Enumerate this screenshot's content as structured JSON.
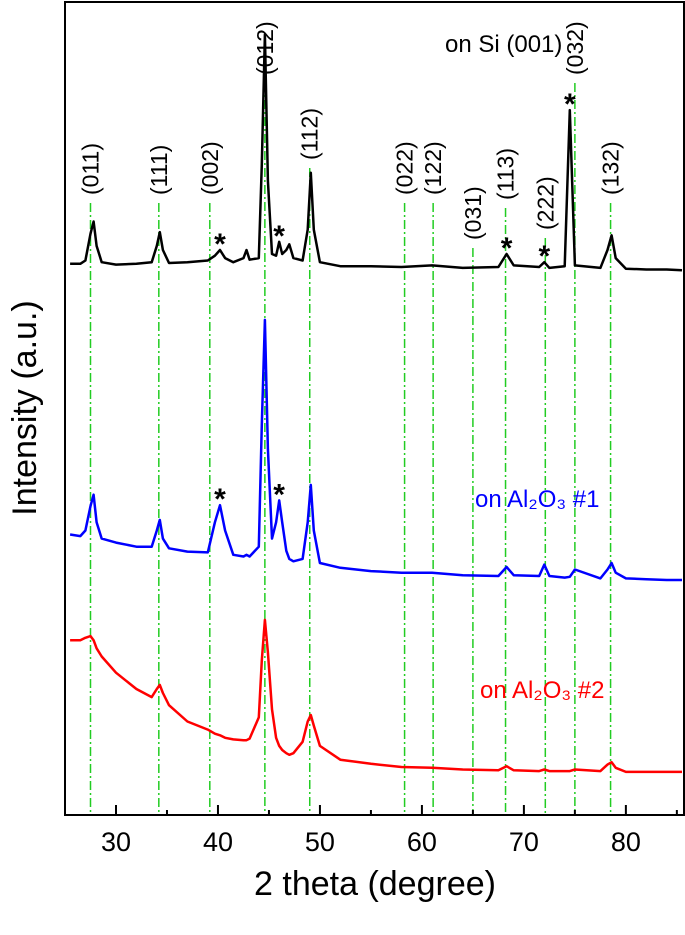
{
  "chart_data": {
    "type": "line",
    "x_label": "2 theta (degree)",
    "y_label": "Intensity (a.u.)",
    "xlim": [
      25,
      85.7
    ],
    "ylim": [
      0,
      100
    ],
    "xticks": [
      30,
      40,
      50,
      60,
      70,
      80
    ],
    "xminorticks": [
      35,
      45,
      55,
      65,
      75,
      85
    ],
    "x": [
      25.5,
      26.5,
      27.0,
      27.5,
      27.8,
      28.1,
      28.6,
      30,
      32,
      33.5,
      34.0,
      34.3,
      34.6,
      35.2,
      37,
      39,
      39.7,
      40.2,
      40.7,
      41.5,
      42.5,
      42.8,
      43.1,
      44.0,
      44.3,
      44.6,
      44.9,
      45.3,
      45.7,
      46.0,
      46.3,
      46.7,
      47.0,
      47.4,
      48.3,
      48.8,
      49.1,
      49.4,
      50.0,
      52,
      55,
      58,
      61,
      64,
      67.5,
      68.3,
      69,
      71.5,
      72,
      72.5,
      74.0,
      74.5,
      75.0,
      77.5,
      78.2,
      78.6,
      79.0,
      80,
      82,
      84,
      85.5
    ],
    "series": [
      {
        "name": "on Si (001)",
        "color": "#000000",
        "values": [
          67.8,
          67.8,
          68.2,
          71.5,
          73,
          70,
          68,
          67.7,
          67.8,
          68,
          70,
          71.7,
          69.5,
          67.9,
          68,
          68.2,
          68.8,
          69.5,
          68.5,
          68,
          68.5,
          69.5,
          68.3,
          68.5,
          80,
          96,
          78,
          69,
          68.8,
          70.5,
          69,
          69.5,
          70.2,
          68.5,
          68.2,
          72,
          79,
          72,
          68,
          67.5,
          67.5,
          67.4,
          67.6,
          67.3,
          67.4,
          69,
          67.6,
          67.4,
          68,
          67.3,
          67.5,
          86.7,
          67.6,
          67.3,
          69.5,
          71.3,
          68.5,
          67.2,
          67.1,
          67.1,
          67.0
        ],
        "annotations": [
          {
            "text": "*",
            "x": 40.2
          },
          {
            "text": "*",
            "x": 46.0
          },
          {
            "text": "*",
            "x": 68.3
          },
          {
            "text": "*",
            "x": 72.0
          },
          {
            "text": "*",
            "x": 74.5
          }
        ]
      },
      {
        "name": "on Al₂O₃ #1",
        "color": "#0000ff",
        "values": [
          34.5,
          34.3,
          35,
          38,
          39.4,
          36,
          34,
          33.5,
          33,
          33,
          35,
          36.3,
          34,
          32.8,
          32.4,
          32.3,
          36,
          38.1,
          35,
          32,
          31.8,
          32,
          31.8,
          33,
          48,
          60.9,
          45,
          34,
          36,
          38.7,
          36,
          32.5,
          31.5,
          31.2,
          31.5,
          36,
          40.6,
          35,
          31,
          30.4,
          30,
          29.8,
          29.8,
          29.5,
          29.4,
          30.5,
          29.5,
          29.4,
          30.8,
          29.4,
          29.2,
          29.3,
          30.2,
          29.1,
          30.2,
          31,
          29.8,
          29.1,
          29,
          28.9,
          28.9
        ],
        "annotations": [
          {
            "text": "*",
            "x": 40.2
          },
          {
            "text": "*",
            "x": 46.0
          }
        ]
      },
      {
        "name": "on Al₂O₃ #2",
        "color": "#ff0000",
        "values": [
          21.5,
          21.5,
          21.8,
          22,
          21.5,
          20.5,
          19.5,
          17.5,
          15.5,
          14.5,
          15.5,
          16,
          15,
          13.5,
          11.5,
          10.5,
          10,
          9.8,
          9.5,
          9.3,
          9.2,
          9.2,
          9.4,
          12,
          19,
          24,
          20,
          13,
          9.5,
          8.5,
          8,
          7.6,
          7.4,
          7.6,
          9,
          11.5,
          12.3,
          11,
          8.5,
          6.8,
          6.3,
          5.9,
          5.8,
          5.6,
          5.5,
          6,
          5.5,
          5.4,
          5.6,
          5.4,
          5.4,
          5.4,
          5.6,
          5.4,
          6.2,
          6.5,
          5.8,
          5.3,
          5.3,
          5.3,
          5.3
        ],
        "annotations": []
      }
    ],
    "reflections": [
      {
        "label": "(011)",
        "x": 27.5
      },
      {
        "label": "(111)",
        "x": 34.2
      },
      {
        "label": "(002)",
        "x": 39.2
      },
      {
        "label": "(012)",
        "x": 44.6
      },
      {
        "label": "(112)",
        "x": 49.0
      },
      {
        "label": "(022)",
        "x": 58.3
      },
      {
        "label": "(122)",
        "x": 61.1
      },
      {
        "label": "(031)",
        "x": 65.0
      },
      {
        "label": "(113)",
        "x": 68.2
      },
      {
        "label": "(222)",
        "x": 72.1
      },
      {
        "label": "(032)",
        "x": 75.0
      },
      {
        "label": "(132)",
        "x": 78.5
      }
    ],
    "reflection_color": "#22cc22"
  }
}
